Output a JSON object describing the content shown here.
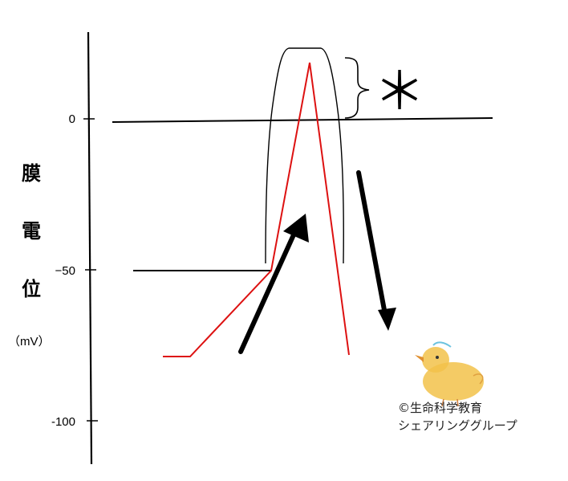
{
  "y_axis": {
    "label_chars": [
      "膜",
      "電",
      "位"
    ],
    "unit": "（mV）",
    "ticks": [
      {
        "value": 0,
        "label": "0"
      },
      {
        "value": -50,
        "label": "−50"
      },
      {
        "value": -100,
        "label": "-100"
      }
    ]
  },
  "annotation": {
    "symbol": "＊"
  },
  "credit": {
    "line1": "©生命科学教育",
    "line2": "シェアリンググループ"
  },
  "colors": {
    "potential_trace": "#dd1111",
    "lines": "#000000",
    "chick": "#f2c24a"
  }
}
